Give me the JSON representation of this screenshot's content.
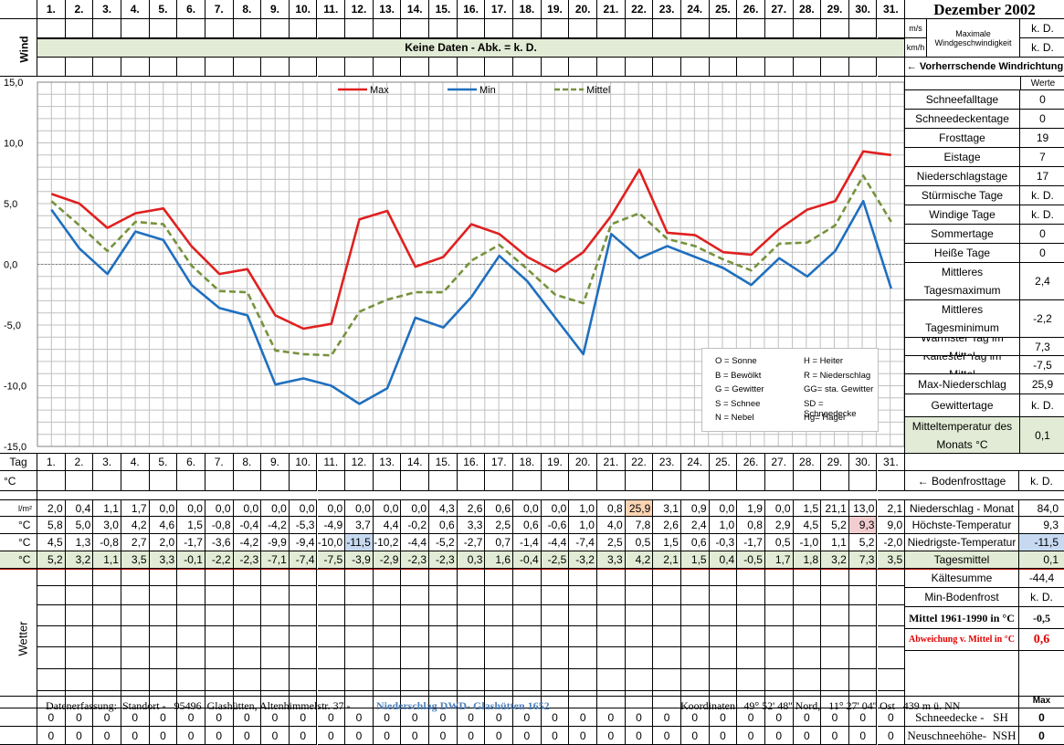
{
  "month_title": "Dezember 2002",
  "days": [
    "1.",
    "2.",
    "3.",
    "4.",
    "5.",
    "6.",
    "7.",
    "8.",
    "9.",
    "10.",
    "11.",
    "12.",
    "13.",
    "14.",
    "15.",
    "16.",
    "17.",
    "18.",
    "19.",
    "20.",
    "21.",
    "22.",
    "23.",
    "24.",
    "25.",
    "26.",
    "27.",
    "28.",
    "29.",
    "30.",
    "31."
  ],
  "wind": {
    "label": "Wind",
    "no_data_text": "Keine Daten - Abk. = k. D.",
    "unit_ms": "m/s",
    "unit_kmh": "km/h",
    "max_label_1": "Maximale",
    "max_label_2": "Windgeschwindigkeit",
    "max_ms": "k. D.",
    "max_kmh": "k. D.",
    "direction_label": "← Vorherrschende Windrichtung"
  },
  "chart_data": {
    "type": "line",
    "categories": [
      "1",
      "2",
      "3",
      "4",
      "5",
      "6",
      "7",
      "8",
      "9",
      "10",
      "11",
      "12",
      "13",
      "14",
      "15",
      "16",
      "17",
      "18",
      "19",
      "20",
      "21",
      "22",
      "23",
      "24",
      "25",
      "26",
      "27",
      "28",
      "29",
      "30",
      "31"
    ],
    "ylim": [
      -15,
      15
    ],
    "yticks": [
      "15,0",
      "10,0",
      "5,0",
      "0,0",
      "-5,0",
      "-10,0",
      "-15,0"
    ],
    "series": [
      {
        "name": "Max",
        "color": "#e02020",
        "dash": false,
        "values": [
          5.8,
          5.0,
          3.0,
          4.2,
          4.6,
          1.5,
          -0.8,
          -0.4,
          -4.2,
          -5.3,
          -4.9,
          3.7,
          4.4,
          -0.2,
          0.6,
          3.3,
          2.5,
          0.6,
          -0.6,
          1.0,
          4.0,
          7.8,
          2.6,
          2.4,
          1.0,
          0.8,
          2.9,
          4.5,
          5.2,
          9.3,
          9.0
        ]
      },
      {
        "name": "Min",
        "color": "#1f6fbf",
        "dash": false,
        "values": [
          4.5,
          1.3,
          -0.8,
          2.7,
          2.0,
          -1.7,
          -3.6,
          -4.2,
          -9.9,
          -9.4,
          -10.0,
          -11.5,
          -10.2,
          -4.4,
          -5.2,
          -2.7,
          0.7,
          -1.4,
          -4.4,
          -7.4,
          2.5,
          0.5,
          1.5,
          0.6,
          -0.3,
          -1.7,
          0.5,
          -1.0,
          1.1,
          5.2,
          -2.0
        ]
      },
      {
        "name": "Mittel",
        "color": "#76923c",
        "dash": true,
        "values": [
          5.2,
          3.2,
          1.1,
          3.5,
          3.3,
          -0.1,
          -2.2,
          -2.3,
          -7.1,
          -7.4,
          -7.5,
          -3.9,
          -2.9,
          -2.3,
          -2.3,
          0.3,
          1.6,
          -0.4,
          -2.5,
          -3.2,
          3.3,
          4.2,
          2.1,
          1.5,
          0.4,
          -0.5,
          1.7,
          1.8,
          3.2,
          7.3,
          3.5
        ]
      }
    ]
  },
  "legend_box": [
    [
      "O = Sonne",
      "H = Heiter"
    ],
    [
      "B = Bewölkt",
      "R = Niederschlag"
    ],
    [
      "G = Gewitter",
      "GG= sta. Gewitter"
    ],
    [
      "S = Schnee",
      "SD = Schneedecke"
    ],
    [
      "N = Nebel",
      "Hg= Hagel"
    ]
  ],
  "stats_header": "Werte",
  "stats": [
    {
      "label": "Schneefalltage",
      "value": "0"
    },
    {
      "label": "Schneedeckentage",
      "value": "0"
    },
    {
      "label": "Frosttage",
      "value": "19"
    },
    {
      "label": "Eistage",
      "value": "7"
    },
    {
      "label": "Niederschlagstage",
      "value": "17"
    },
    {
      "label": "Stürmische Tage",
      "value": "k. D."
    },
    {
      "label": "Windige Tage",
      "value": "k. D."
    },
    {
      "label": "Sommertage",
      "value": "0"
    },
    {
      "label": "Heiße Tage",
      "value": "0"
    },
    {
      "label": "Mittleres Tagesmaximum",
      "value": "2,4"
    },
    {
      "label": "Mittleres Tagesminimum",
      "value": "-2,2"
    },
    {
      "label": "Wärmster Tag im Mittel",
      "value": "7,3"
    },
    {
      "label": "Kältester Tag im Mittel",
      "value": "-7,5"
    },
    {
      "label": "Max-Niederschlag",
      "value": "25,9"
    },
    {
      "label": "Gewittertage",
      "value": "k. D."
    },
    {
      "label": "Mitteltemperatur des Monats °C",
      "value": "0,1"
    }
  ],
  "table": {
    "tag_label": "Tag",
    "bodenfrost_label": "°C",
    "bodenfrost_side": "← Bodenfrosttage",
    "bodenfrost_value": "k. D.",
    "rows": [
      {
        "unit": "l/m²",
        "label": "Niederschlag - Monat",
        "total": "84,0",
        "values": [
          "2,0",
          "0,4",
          "1,1",
          "1,7",
          "0,0",
          "0,0",
          "0,0",
          "0,0",
          "0,0",
          "0,0",
          "0,0",
          "0,0",
          "0,0",
          "0,0",
          "4,3",
          "2,6",
          "0,6",
          "0,0",
          "0,0",
          "1,0",
          "0,8",
          "25,9",
          "3,1",
          "0,9",
          "0,0",
          "1,9",
          "0,0",
          "1,5",
          "21,1",
          "13,0",
          "2,1"
        ]
      },
      {
        "unit": "°C",
        "label": "Höchste-Temperatur",
        "total": "9,3",
        "values": [
          "5,8",
          "5,0",
          "3,0",
          "4,2",
          "4,6",
          "1,5",
          "-0,8",
          "-0,4",
          "-4,2",
          "-5,3",
          "-4,9",
          "3,7",
          "4,4",
          "-0,2",
          "0,6",
          "3,3",
          "2,5",
          "0,6",
          "-0,6",
          "1,0",
          "4,0",
          "7,8",
          "2,6",
          "2,4",
          "1,0",
          "0,8",
          "2,9",
          "4,5",
          "5,2",
          "9,3",
          "9,0"
        ]
      },
      {
        "unit": "°C",
        "label": "Niedrigste-Temperatur",
        "total": "-11,5",
        "values": [
          "4,5",
          "1,3",
          "-0,8",
          "2,7",
          "2,0",
          "-1,7",
          "-3,6",
          "-4,2",
          "-9,9",
          "-9,4",
          "-10,0",
          "-11,5",
          "-10,2",
          "-4,4",
          "-5,2",
          "-2,7",
          "0,7",
          "-1,4",
          "-4,4",
          "-7,4",
          "2,5",
          "0,5",
          "1,5",
          "0,6",
          "-0,3",
          "-1,7",
          "0,5",
          "-1,0",
          "1,1",
          "5,2",
          "-2,0"
        ]
      },
      {
        "unit": "°C",
        "label": "Tagesmittel",
        "total": "0,1",
        "values": [
          "5,2",
          "3,2",
          "1,1",
          "3,5",
          "3,3",
          "-0,1",
          "-2,2",
          "-2,3",
          "-7,1",
          "-7,4",
          "-7,5",
          "-3,9",
          "-2,9",
          "-2,3",
          "-2,3",
          "0,3",
          "1,6",
          "-0,4",
          "-2,5",
          "-3,2",
          "3,3",
          "4,2",
          "2,1",
          "1,5",
          "0,4",
          "-0,5",
          "1,7",
          "1,8",
          "3,2",
          "7,3",
          "3,5"
        ]
      }
    ],
    "highlight": {
      "rain_day": 22,
      "max_day": 30,
      "min_day": 12
    },
    "lower_stats": [
      {
        "label": "Kältesumme",
        "value": "-44,4"
      },
      {
        "label": "Min-Bodenfrost",
        "value": "k. D."
      },
      {
        "label": "Mittel 1961-1990 in °C",
        "value": "-0,5"
      },
      {
        "label": "Abweichung v. Mittel in °C",
        "value": "0,6"
      }
    ],
    "wetter_label": "Wetter",
    "max_label": "Max",
    "snow_label": "Schneedecke -   SH",
    "snow_value": "0",
    "newsnow_label": "Neuschneehöhe-  NSH",
    "newsnow_value": "0",
    "snow_values": [
      "0",
      "0",
      "0",
      "0",
      "0",
      "0",
      "0",
      "0",
      "0",
      "0",
      "0",
      "0",
      "0",
      "0",
      "0",
      "0",
      "0",
      "0",
      "0",
      "0",
      "0",
      "0",
      "0",
      "0",
      "0",
      "0",
      "0",
      "0",
      "0",
      "0",
      "0"
    ],
    "newsnow_values": [
      "0",
      "0",
      "0",
      "0",
      "0",
      "0",
      "0",
      "0",
      "0",
      "0",
      "0",
      "0",
      "0",
      "0",
      "0",
      "0",
      "0",
      "0",
      "0",
      "0",
      "0",
      "0",
      "0",
      "0",
      "0",
      "0",
      "0",
      "0",
      "0",
      "0",
      "0"
    ]
  },
  "footer": {
    "left": "Datenerfassung:  Standort -   95496  Glashütten, Altenhimmelstr. 37 - ",
    "link": "Niederschlag DWD- Glashütten 1652",
    "right": "Koordinaten:  49° 52' 48'' Nord,   11° 27' 04'' Ost   439 m ü. NN"
  }
}
